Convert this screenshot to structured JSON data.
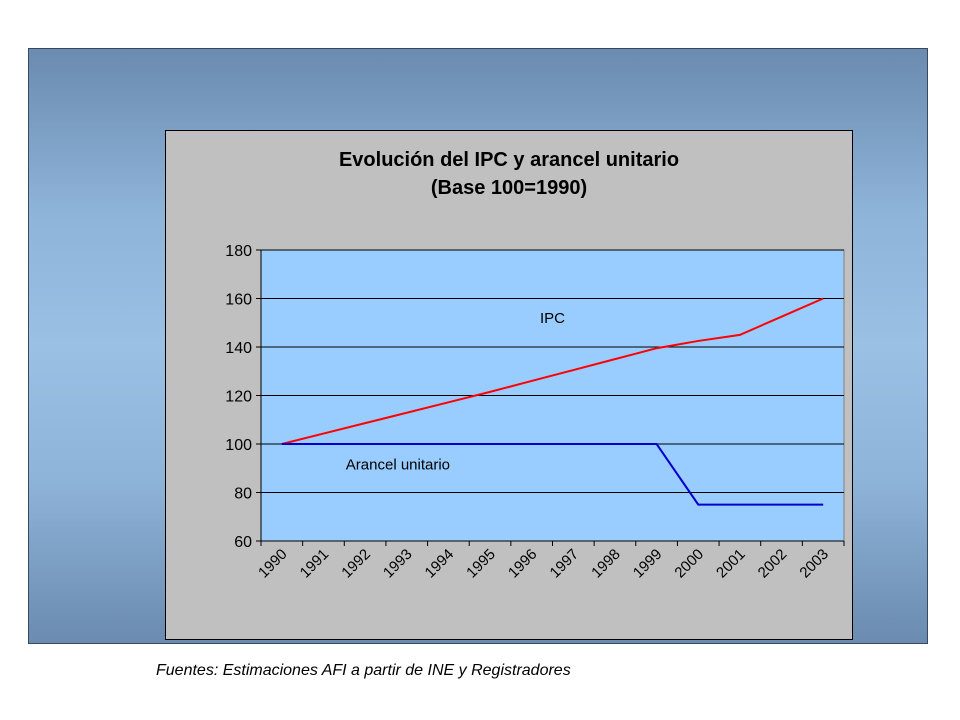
{
  "source_note": "Fuentes: Estimaciones AFI a partir de INE y Registradores",
  "chart_data": {
    "type": "line",
    "title": "Evolución del IPC y arancel unitario",
    "subtitle": "(Base 100=1990)",
    "xlabel": "",
    "ylabel": "",
    "categories": [
      "1990",
      "1991",
      "1992",
      "1993",
      "1994",
      "1995",
      "1996",
      "1997",
      "1998",
      "1999",
      "2000",
      "2001",
      "2002",
      "2003"
    ],
    "ylim": [
      60,
      180
    ],
    "yticks": [
      60,
      80,
      100,
      120,
      140,
      160,
      180
    ],
    "grid": true,
    "plot_background": "#99ccff",
    "series": [
      {
        "name": "IPC",
        "color": "#ff0000",
        "values": [
          100,
          104.3,
          108.6,
          112.9,
          117.2,
          121.5,
          126,
          130.5,
          135,
          139.5,
          142.5,
          145,
          152.5,
          160
        ]
      },
      {
        "name": "Arancel unitario",
        "color": "#0000cc",
        "values": [
          100,
          100,
          100,
          100,
          100,
          100,
          100,
          100,
          100,
          100,
          75,
          75,
          75,
          75
        ]
      }
    ]
  }
}
